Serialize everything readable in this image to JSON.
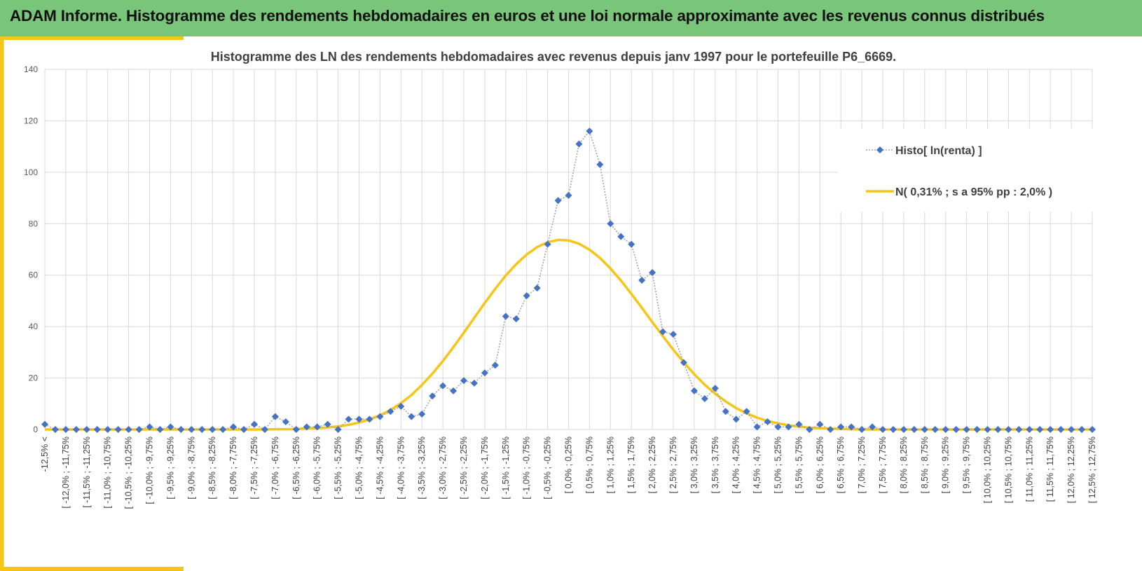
{
  "header": {
    "title": "ADAM Informe. Histogramme des rendements hebdomadaires en euros et une loi normale approximante avec les revenus connus distribués"
  },
  "colors": {
    "header_bg": "#79c57a",
    "accent": "#f5c518",
    "histo_marker": "#4472c4",
    "histo_line": "#a6a6a6",
    "normal_line": "#f5c518",
    "grid": "#d9d9d9"
  },
  "chart_data": {
    "type": "line",
    "title": "Histogramme des LN des rendements hebdomadaires avec revenus depuis janv 1997 pour le portefeuille P6_6669.",
    "xlabel": "",
    "ylabel": "",
    "ylim": [
      0,
      140
    ],
    "yticks": [
      0,
      20,
      40,
      60,
      80,
      100,
      120,
      140
    ],
    "grid": true,
    "legend_position": "right",
    "categories": [
      "-12,5% <",
      "[ -12,25% ; -12,0%",
      "[ -12,0% ; -11,75%",
      "[ -11,75% ; -11,5%",
      "[ -11,5% ; -11,25%",
      "[ -11,25% ; -11,0%",
      "[ -11,0% ; -10,75%",
      "[ -10,75% ; -10,5%",
      "[ -10,5% ; -10,25%",
      "[ -10,25% ; -10,0%",
      "[ -10,0% ; -9,75%",
      "[ -9,75% ; -9,5%",
      "[ -9,5% ; -9,25%",
      "[ -9,25% ; -9,0%",
      "[ -9,0% ; -8,75%",
      "[ -8,75% ; -8,5%",
      "[ -8,5% ; -8,25%",
      "[ -8,25% ; -8,0%",
      "[ -8,0% ; -7,75%",
      "[ -7,75% ; -7,5%",
      "[ -7,5% ; -7,25%",
      "[ -7,25% ; -7,0%",
      "[ -7,0% ; -6,75%",
      "[ -6,75% ; -6,5%",
      "[ -6,5% ; -6,25%",
      "[ -6,25% ; -6,0%",
      "[ -6,0% ; -5,75%",
      "[ -5,75% ; -5,5%",
      "[ -5,5% ; -5,25%",
      "[ -5,25% ; -5,0%",
      "[ -5,0% ; -4,75%",
      "[ -4,75% ; -4,5%",
      "[ -4,5% ; -4,25%",
      "[ -4,25% ; -4,0%",
      "[ -4,0% ; -3,75%",
      "[ -3,75% ; -3,5%",
      "[ -3,5% ; -3,25%",
      "[ -3,25% ; -3,0%",
      "[ -3,0% ; -2,75%",
      "[ -2,75% ; -2,5%",
      "[ -2,5% ; -2,25%",
      "[ -2,25% ; -2,0%",
      "[ -2,0% ; -1,75%",
      "[ -1,75% ; -1,5%",
      "[ -1,5% ; -1,25%",
      "[ -1,25% ; -1,0%",
      "[ -1,0% ; -0,75%",
      "[ -0,75% ; -0,5%",
      "[ -0,5% ; -0,25%",
      "[ -0,25% ; 0,0%",
      "[ 0,0% ; 0,25%",
      "[ 0,25% ; 0,5%",
      "[ 0,5% ; 0,75%",
      "[ 0,75% ; 1,0%",
      "[ 1,0% ; 1,25%",
      "[ 1,25% ; 1,5%",
      "[ 1,5% ; 1,75%",
      "[ 1,75% ; 2,0%",
      "[ 2,0% ; 2,25%",
      "[ 2,25% ; 2,5%",
      "[ 2,5% ; 2,75%",
      "[ 2,75% ; 3,0%",
      "[ 3,0% ; 3,25%",
      "[ 3,25% ; 3,5%",
      "[ 3,5% ; 3,75%",
      "[ 3,75% ; 4,0%",
      "[ 4,0% ; 4,25%",
      "[ 4,25% ; 4,5%",
      "[ 4,5% ; 4,75%",
      "[ 4,75% ; 5,0%",
      "[ 5,0% ; 5,25%",
      "[ 5,25% ; 5,5%",
      "[ 5,5% ; 5,75%",
      "[ 5,75% ; 6,0%",
      "[ 6,0% ; 6,25%",
      "[ 6,25% ; 6,5%",
      "[ 6,5% ; 6,75%",
      "[ 6,75% ; 7,0%",
      "[ 7,0% ; 7,25%",
      "[ 7,25% ; 7,5%",
      "[ 7,5% ; 7,75%",
      "[ 7,75% ; 8,0%",
      "[ 8,0% ; 8,25%",
      "[ 8,25% ; 8,5%",
      "[ 8,5% ; 8,75%",
      "[ 8,75% ; 9,0%",
      "[ 9,0% ; 9,25%",
      "[ 9,25% ; 9,5%",
      "[ 9,5% ; 9,75%",
      "[ 9,75% ; 10,0%",
      "[ 10,0% ; 10,25%",
      "[ 10,25% ; 10,5%",
      "[ 10,5% ; 10,75%",
      "[ 10,75% ; 11,0%",
      "[ 11,0% ; 11,25%",
      "[ 11,25% ; 11,5%",
      "[ 11,5% ; 11,75%",
      "[ 11,75% ; 12,0%",
      "[ 12,0% ; 12,25%",
      "[ 12,25% ; 12,5%",
      "[ 12,5% ; 12,75%"
    ],
    "series": [
      {
        "name": "Histo[ ln(renta) ]",
        "style": "dotted-line-with-diamonds",
        "values": [
          2,
          0,
          0,
          0,
          0,
          0,
          0,
          0,
          0,
          0,
          1,
          0,
          1,
          0,
          0,
          0,
          0,
          0,
          1,
          0,
          2,
          0,
          5,
          3,
          0,
          1,
          1,
          2,
          0,
          4,
          4,
          4,
          5,
          7,
          9,
          5,
          6,
          13,
          17,
          15,
          19,
          18,
          22,
          25,
          44,
          43,
          52,
          55,
          72,
          89,
          91,
          111,
          116,
          103,
          80,
          75,
          72,
          58,
          61,
          38,
          37,
          26,
          15,
          12,
          16,
          7,
          4,
          7,
          1,
          3,
          1,
          1,
          2,
          0,
          2,
          0,
          1,
          1,
          0,
          1,
          0,
          0,
          0,
          0,
          0,
          0,
          0,
          0,
          0,
          0,
          0,
          0,
          0,
          0,
          0,
          0,
          0,
          0,
          0,
          0,
          0
        ]
      },
      {
        "name": "N( 0,31% ; s a 95% pp : 2,0% )",
        "style": "solid-line",
        "values": [
          0,
          0,
          0,
          0,
          0,
          0,
          0,
          0,
          0,
          0,
          0,
          0,
          0,
          0,
          0,
          0,
          0,
          0,
          0,
          0,
          0,
          0,
          0.1,
          0.1,
          0.2,
          0.3,
          0.5,
          0.8,
          1.2,
          1.8,
          2.7,
          3.9,
          5.5,
          7.6,
          10.2,
          13.4,
          17.3,
          21.7,
          26.6,
          32,
          37.6,
          43.4,
          49.2,
          54.7,
          59.8,
          64.3,
          68,
          70.9,
          72.8,
          73.7,
          73.5,
          72.2,
          69.9,
          66.7,
          62.6,
          57.9,
          52.7,
          47.3,
          41.7,
          36.3,
          31,
          26.1,
          21.5,
          17.4,
          13.9,
          10.9,
          8.3,
          6.3,
          4.6,
          3.3,
          2.4,
          1.6,
          1.1,
          0.7,
          0.5,
          0.3,
          0.2,
          0.1,
          0,
          0,
          0,
          0,
          0,
          0,
          0,
          0,
          0,
          0,
          0,
          0,
          0,
          0,
          0,
          0,
          0,
          0,
          0,
          0,
          0,
          0,
          0
        ]
      }
    ]
  }
}
